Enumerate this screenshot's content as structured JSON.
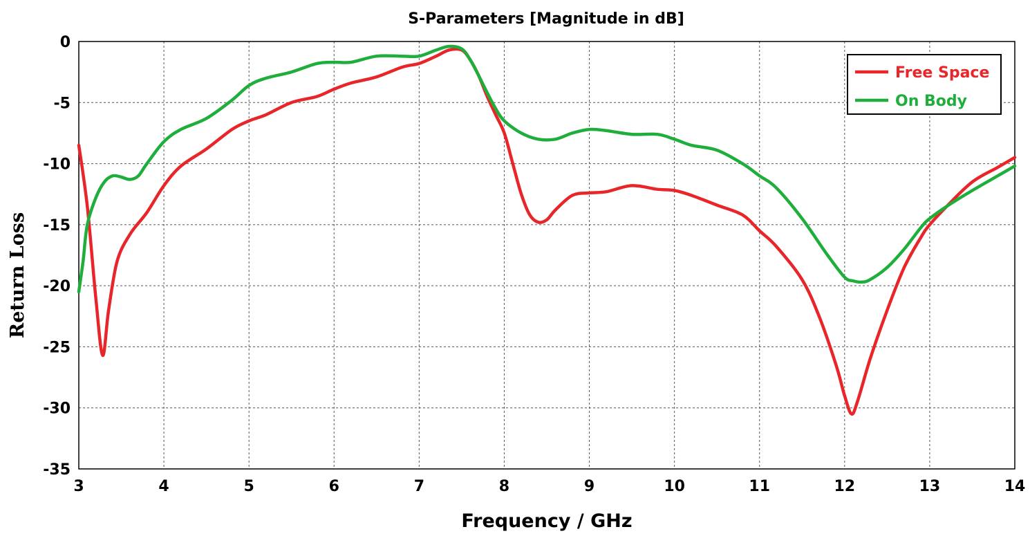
{
  "chart_data": {
    "type": "line",
    "title": "S-Parameters [Magnitude in dB]",
    "xlabel": "Frequency / GHz",
    "ylabel": "Return Loss",
    "xlim": [
      3,
      14
    ],
    "ylim": [
      -35,
      0
    ],
    "xticks": [
      3,
      4,
      5,
      6,
      7,
      8,
      9,
      10,
      11,
      12,
      13,
      14
    ],
    "yticks": [
      0,
      -5,
      -10,
      -15,
      -20,
      -25,
      -30,
      -35
    ],
    "xtick_labels": [
      "3",
      "4",
      "5",
      "6",
      "7",
      "8",
      "9",
      "10",
      "11",
      "12",
      "13",
      "14"
    ],
    "ytick_labels": [
      "0",
      "-5",
      "-10",
      "-15",
      "-20",
      "-25",
      "-30",
      "-35"
    ],
    "grid": true,
    "legend_position": "top-right",
    "series": [
      {
        "name": "Free Space",
        "color": "#e8262a",
        "x": [
          3.0,
          3.1,
          3.2,
          3.28,
          3.35,
          3.45,
          3.6,
          3.8,
          4.0,
          4.2,
          4.5,
          4.8,
          5.0,
          5.2,
          5.5,
          5.8,
          6.0,
          6.2,
          6.5,
          6.8,
          7.0,
          7.2,
          7.35,
          7.5,
          7.6,
          7.7,
          7.8,
          7.9,
          8.0,
          8.1,
          8.2,
          8.3,
          8.4,
          8.5,
          8.6,
          8.8,
          9.0,
          9.2,
          9.5,
          9.8,
          10.0,
          10.2,
          10.5,
          10.8,
          11.0,
          11.2,
          11.5,
          11.7,
          11.9,
          12.0,
          12.08,
          12.15,
          12.3,
          12.5,
          12.7,
          12.9,
          13.0,
          13.2,
          13.5,
          13.8,
          14.0
        ],
        "y": [
          -8.5,
          -13.5,
          -21.0,
          -25.7,
          -22.0,
          -18.0,
          -15.8,
          -14.0,
          -11.8,
          -10.2,
          -8.8,
          -7.2,
          -6.5,
          -6.0,
          -5.0,
          -4.5,
          -3.9,
          -3.4,
          -2.9,
          -2.1,
          -1.8,
          -1.2,
          -0.7,
          -0.7,
          -1.5,
          -2.8,
          -4.5,
          -6.0,
          -7.5,
          -10.0,
          -12.5,
          -14.2,
          -14.8,
          -14.6,
          -13.8,
          -12.6,
          -12.4,
          -12.3,
          -11.8,
          -12.1,
          -12.2,
          -12.6,
          -13.4,
          -14.2,
          -15.5,
          -16.8,
          -19.5,
          -22.5,
          -26.5,
          -29.0,
          -30.5,
          -29.5,
          -26.0,
          -22.0,
          -18.5,
          -16.0,
          -15.0,
          -13.5,
          -11.5,
          -10.3,
          -9.5
        ]
      },
      {
        "name": "On Body",
        "color": "#1fae3c",
        "x": [
          3.0,
          3.05,
          3.1,
          3.2,
          3.3,
          3.4,
          3.5,
          3.6,
          3.7,
          3.8,
          4.0,
          4.2,
          4.5,
          4.8,
          5.0,
          5.2,
          5.5,
          5.8,
          6.0,
          6.2,
          6.5,
          6.8,
          7.0,
          7.2,
          7.35,
          7.5,
          7.6,
          7.7,
          7.8,
          7.9,
          8.0,
          8.2,
          8.4,
          8.6,
          8.8,
          9.0,
          9.2,
          9.5,
          9.8,
          10.0,
          10.2,
          10.5,
          10.8,
          11.0,
          11.2,
          11.5,
          11.8,
          12.0,
          12.1,
          12.2,
          12.3,
          12.5,
          12.7,
          12.9,
          13.0,
          13.2,
          13.5,
          13.8,
          14.0
        ],
        "y": [
          -20.5,
          -18.0,
          -15.0,
          -12.8,
          -11.5,
          -11.0,
          -11.1,
          -11.3,
          -11.0,
          -10.0,
          -8.2,
          -7.2,
          -6.3,
          -4.8,
          -3.6,
          -3.0,
          -2.5,
          -1.8,
          -1.7,
          -1.7,
          -1.2,
          -1.2,
          -1.2,
          -0.7,
          -0.4,
          -0.6,
          -1.5,
          -2.8,
          -4.2,
          -5.5,
          -6.5,
          -7.5,
          -8.0,
          -8.0,
          -7.5,
          -7.2,
          -7.3,
          -7.6,
          -7.6,
          -8.0,
          -8.5,
          -8.9,
          -10.0,
          -11.0,
          -12.0,
          -14.5,
          -17.5,
          -19.3,
          -19.6,
          -19.7,
          -19.5,
          -18.5,
          -17.0,
          -15.2,
          -14.5,
          -13.5,
          -12.2,
          -11.0,
          -10.2
        ]
      }
    ]
  }
}
